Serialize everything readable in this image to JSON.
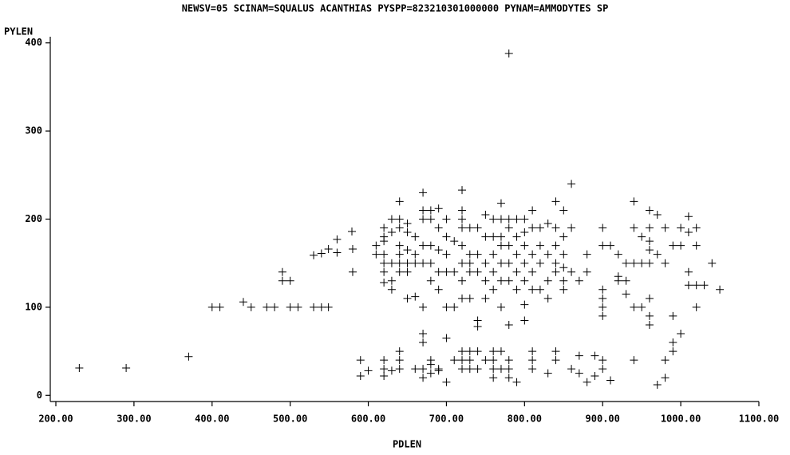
{
  "chart_data": {
    "type": "scatter",
    "title": "NEWSV=05 SCINAM=SQUALUS ACANTHIAS PYSPP=823210301000000 PYNAM=AMMODYTES SP",
    "x_label": "PDLEN",
    "y_label": "PYLEN",
    "color": "#000000",
    "xlim": [
      200,
      1100
    ],
    "ylim": [
      -7,
      407
    ],
    "xticks": [
      {
        "value": 200,
        "label": "200.00"
      },
      {
        "value": 300,
        "label": "300.00"
      },
      {
        "value": 400,
        "label": "400.00"
      },
      {
        "value": 500,
        "label": "500.00"
      },
      {
        "value": 600,
        "label": "600.00"
      },
      {
        "value": 700,
        "label": "700.00"
      },
      {
        "value": 800,
        "label": "800.00"
      },
      {
        "value": 900,
        "label": "900.00"
      },
      {
        "value": 1000,
        "label": "1000.00"
      },
      {
        "value": 1100,
        "label": "1100.00"
      }
    ],
    "yticks": [
      0,
      100,
      200,
      300,
      400
    ],
    "x": [
      230,
      290,
      370,
      400,
      410,
      440,
      450,
      470,
      480,
      500,
      510,
      530,
      540,
      549,
      490,
      490,
      500,
      530,
      540,
      549,
      560,
      560,
      579,
      580,
      580,
      590,
      590,
      600,
      610,
      610,
      620,
      620,
      620,
      620,
      620,
      620,
      620,
      620,
      620,
      620,
      630,
      630,
      630,
      630,
      630,
      630,
      640,
      640,
      640,
      640,
      640,
      640,
      640,
      640,
      640,
      640,
      650,
      650,
      650,
      650,
      650,
      650,
      660,
      660,
      660,
      660,
      660,
      670,
      670,
      670,
      670,
      670,
      670,
      670,
      670,
      670,
      670,
      680,
      680,
      680,
      680,
      680,
      680,
      680,
      680,
      690,
      690,
      690,
      690,
      690,
      690,
      690,
      700,
      700,
      700,
      700,
      700,
      700,
      700,
      710,
      710,
      710,
      710,
      720,
      720,
      720,
      720,
      720,
      720,
      720,
      720,
      720,
      720,
      720,
      730,
      730,
      730,
      730,
      730,
      730,
      730,
      730,
      740,
      740,
      740,
      740,
      740,
      740,
      740,
      750,
      750,
      750,
      750,
      750,
      750,
      760,
      760,
      760,
      760,
      760,
      760,
      760,
      760,
      760,
      770,
      770,
      770,
      770,
      770,
      770,
      770,
      770,
      770,
      780,
      780,
      780,
      780,
      780,
      780,
      780,
      780,
      780,
      780,
      790,
      790,
      790,
      790,
      790,
      790,
      800,
      800,
      800,
      800,
      800,
      800,
      800,
      810,
      810,
      810,
      810,
      810,
      810,
      810,
      810,
      820,
      820,
      820,
      820,
      830,
      830,
      830,
      830,
      830,
      840,
      840,
      840,
      840,
      840,
      840,
      840,
      850,
      850,
      850,
      850,
      850,
      850,
      860,
      860,
      860,
      860,
      870,
      870,
      870,
      880,
      880,
      880,
      890,
      890,
      900,
      900,
      900,
      900,
      900,
      900,
      900,
      900,
      910,
      910,
      920,
      920,
      920,
      930,
      930,
      930,
      940,
      940,
      940,
      940,
      940,
      950,
      950,
      950,
      960,
      960,
      960,
      960,
      960,
      960,
      960,
      960,
      970,
      970,
      970,
      980,
      980,
      980,
      980,
      990,
      990,
      990,
      990,
      1000,
      1000,
      1000,
      1010,
      1010,
      1010,
      1010,
      1020,
      1020,
      1020,
      1020,
      1030,
      1040,
      1050
    ],
    "y": [
      31,
      31,
      44,
      100,
      100,
      106,
      100,
      100,
      100,
      100,
      100,
      100,
      100,
      100,
      140,
      130,
      130,
      159,
      161,
      166,
      177,
      162,
      186,
      166,
      140,
      40,
      22,
      28,
      170,
      160,
      190,
      180,
      175,
      160,
      150,
      140,
      128,
      40,
      30,
      22,
      200,
      185,
      150,
      130,
      120,
      28,
      220,
      200,
      190,
      170,
      160,
      150,
      140,
      50,
      40,
      30,
      195,
      185,
      165,
      150,
      140,
      110,
      180,
      160,
      150,
      112,
      30,
      230,
      210,
      200,
      170,
      150,
      100,
      70,
      60,
      30,
      20,
      210,
      200,
      170,
      150,
      130,
      40,
      35,
      25,
      212,
      190,
      165,
      140,
      120,
      30,
      28,
      200,
      180,
      160,
      140,
      100,
      65,
      15,
      175,
      140,
      100,
      40,
      233,
      210,
      200,
      190,
      170,
      150,
      130,
      110,
      50,
      40,
      30,
      190,
      160,
      150,
      140,
      110,
      50,
      40,
      30,
      190,
      160,
      140,
      85,
      78,
      50,
      30,
      205,
      180,
      150,
      130,
      110,
      40,
      200,
      180,
      160,
      140,
      120,
      50,
      40,
      30,
      20,
      218,
      200,
      180,
      170,
      150,
      130,
      100,
      50,
      30,
      388,
      200,
      190,
      170,
      150,
      130,
      80,
      40,
      30,
      20,
      200,
      180,
      160,
      140,
      120,
      15,
      200,
      185,
      170,
      150,
      130,
      103,
      85,
      210,
      190,
      160,
      140,
      120,
      50,
      40,
      30,
      190,
      170,
      150,
      120,
      195,
      160,
      130,
      110,
      25,
      220,
      190,
      170,
      150,
      140,
      50,
      40,
      210,
      180,
      160,
      145,
      130,
      120,
      240,
      190,
      140,
      30,
      130,
      45,
      25,
      160,
      140,
      15,
      45,
      22,
      190,
      170,
      120,
      110,
      100,
      90,
      40,
      30,
      170,
      17,
      160,
      135,
      130,
      150,
      130,
      115,
      220,
      190,
      150,
      100,
      40,
      180,
      150,
      100,
      210,
      190,
      175,
      165,
      150,
      110,
      90,
      80,
      205,
      160,
      12,
      190,
      150,
      40,
      20,
      170,
      60,
      50,
      90,
      190,
      170,
      70,
      203,
      185,
      140,
      125,
      190,
      170,
      125,
      100,
      125,
      150,
      120
    ]
  }
}
